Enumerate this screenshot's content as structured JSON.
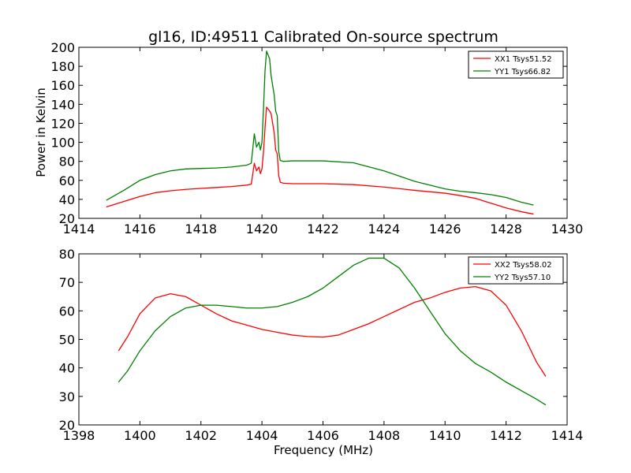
{
  "chart_data": [
    {
      "type": "line",
      "title": "gl16, ID:49511 Calibrated On-source spectrum",
      "ylabel": "Power in Kelvin",
      "xlabel": "",
      "xlim": [
        1414,
        1430
      ],
      "ylim": [
        20,
        200
      ],
      "xticks": [
        1414,
        1416,
        1418,
        1420,
        1422,
        1424,
        1426,
        1428,
        1430
      ],
      "yticks": [
        20,
        40,
        60,
        80,
        100,
        120,
        140,
        160,
        180,
        200
      ],
      "grid": false,
      "legend_position": "top-right",
      "series": [
        {
          "name": "XX1 Tsys51.52",
          "color": "#ff0000",
          "x": [
            1414.9,
            1415.5,
            1416.0,
            1416.5,
            1417.0,
            1417.5,
            1418.0,
            1418.5,
            1419.0,
            1419.5,
            1419.65,
            1419.75,
            1419.82,
            1419.9,
            1419.95,
            1420.0,
            1420.05,
            1420.1,
            1420.15,
            1420.2,
            1420.25,
            1420.3,
            1420.35,
            1420.4,
            1420.45,
            1420.5,
            1420.55,
            1420.6,
            1420.7,
            1421.0,
            1422.0,
            1423.0,
            1424.0,
            1425.0,
            1426.0,
            1426.5,
            1427.0,
            1427.5,
            1428.0,
            1428.5,
            1428.9
          ],
          "values": [
            32,
            38,
            43,
            47,
            49,
            50.5,
            51.5,
            52.5,
            53.5,
            55,
            56,
            78,
            70,
            74,
            67,
            72,
            90,
            115,
            137,
            135,
            133,
            130,
            120,
            110,
            92,
            88,
            65,
            58,
            57,
            56.5,
            56.5,
            55.5,
            53,
            49.5,
            46.5,
            44,
            41,
            36,
            31,
            27,
            24.5
          ]
        },
        {
          "name": "YY1 Tsys66.82",
          "color": "#008000",
          "x": [
            1414.9,
            1415.5,
            1416.0,
            1416.5,
            1417.0,
            1417.5,
            1418.0,
            1418.5,
            1419.0,
            1419.5,
            1419.65,
            1419.75,
            1419.82,
            1419.9,
            1419.95,
            1420.0,
            1420.05,
            1420.1,
            1420.15,
            1420.2,
            1420.25,
            1420.3,
            1420.35,
            1420.4,
            1420.45,
            1420.5,
            1420.55,
            1420.6,
            1420.7,
            1421.0,
            1422.0,
            1423.0,
            1424.0,
            1425.0,
            1426.0,
            1426.5,
            1427.0,
            1427.5,
            1428.0,
            1428.5,
            1428.9
          ],
          "values": [
            39,
            50,
            60,
            66,
            70,
            72,
            72.5,
            73,
            74,
            76,
            78,
            109,
            95,
            100,
            92,
            100,
            135,
            175,
            196,
            192,
            188,
            170,
            160,
            150,
            133,
            128,
            90,
            81,
            80,
            80.5,
            80.5,
            78.5,
            70,
            59,
            51,
            48.5,
            47,
            45,
            42,
            37,
            34
          ]
        }
      ]
    },
    {
      "type": "line",
      "title": "",
      "xlabel": "Frequency (MHz)",
      "ylabel": "",
      "xlim": [
        1398,
        1414
      ],
      "ylim": [
        20,
        80
      ],
      "xticks": [
        1398,
        1400,
        1402,
        1404,
        1406,
        1408,
        1410,
        1412,
        1414
      ],
      "yticks": [
        20,
        30,
        40,
        50,
        60,
        70,
        80
      ],
      "grid": false,
      "legend_position": "top-right",
      "series": [
        {
          "name": "XX2 Tsys58.02",
          "color": "#ff0000",
          "x": [
            1399.3,
            1399.6,
            1400.0,
            1400.5,
            1401.0,
            1401.5,
            1402.0,
            1402.5,
            1403.0,
            1403.5,
            1404.0,
            1404.5,
            1405.0,
            1405.5,
            1406.0,
            1406.5,
            1407.0,
            1407.5,
            1408.0,
            1408.5,
            1409.0,
            1409.5,
            1410.0,
            1410.5,
            1411.0,
            1411.5,
            1412.0,
            1412.5,
            1413.0,
            1413.3
          ],
          "values": [
            46,
            51,
            59,
            64.5,
            66,
            65,
            62,
            59,
            56.5,
            55,
            53.5,
            52.5,
            51.5,
            51,
            50.8,
            51.5,
            53.5,
            55.5,
            58,
            60.5,
            63,
            64.5,
            66.5,
            68,
            68.5,
            67,
            62,
            53,
            42,
            37
          ]
        },
        {
          "name": "YY2 Tsys57.10",
          "color": "#008000",
          "x": [
            1399.3,
            1399.6,
            1400.0,
            1400.5,
            1401.0,
            1401.5,
            1402.0,
            1402.5,
            1403.0,
            1403.5,
            1404.0,
            1404.5,
            1405.0,
            1405.5,
            1406.0,
            1406.5,
            1407.0,
            1407.5,
            1408.0,
            1408.5,
            1409.0,
            1409.5,
            1410.0,
            1410.5,
            1411.0,
            1411.5,
            1412.0,
            1412.5,
            1413.0,
            1413.3
          ],
          "values": [
            35,
            39,
            46,
            53,
            58,
            61,
            62,
            62,
            61.5,
            61,
            61,
            61.5,
            63,
            65,
            68,
            72,
            76,
            78.5,
            78.5,
            75,
            68,
            60,
            52,
            46,
            41.5,
            38.5,
            35,
            32,
            29,
            27
          ]
        }
      ]
    }
  ]
}
